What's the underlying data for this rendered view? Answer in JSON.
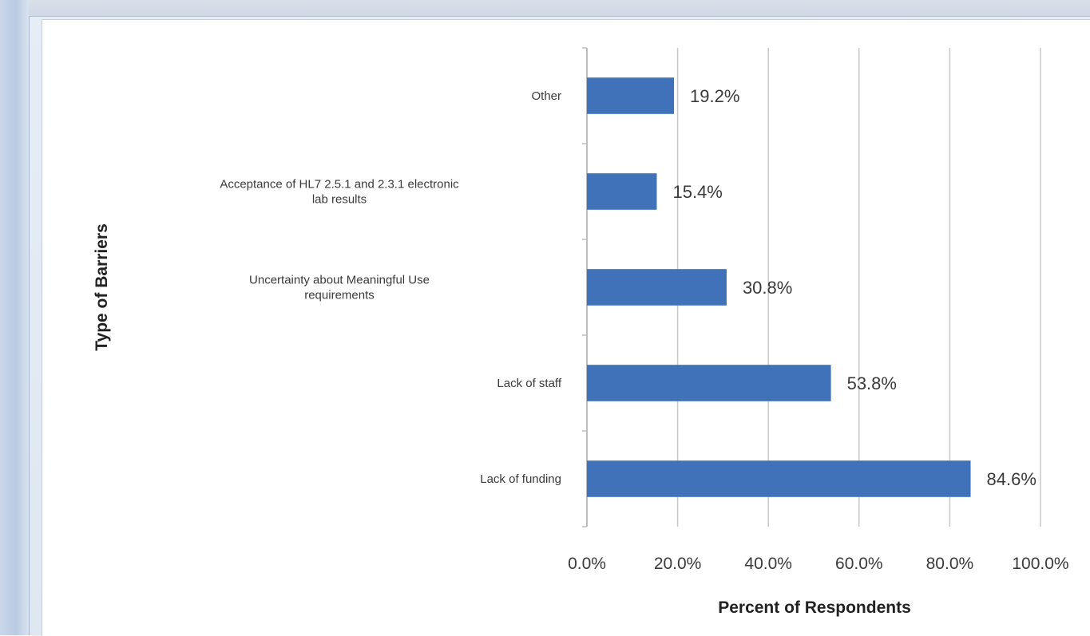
{
  "chart_data": {
    "type": "bar",
    "orientation": "horizontal",
    "title": "",
    "xlabel": "Percent of Respondents",
    "ylabel": "Type of Barriers",
    "categories": [
      "Other",
      "Acceptance of HL7 2.5.1 and 2.3.1 electronic lab results",
      "Uncertainty about Meaningful Use requirements",
      "Lack of staff",
      "Lack of funding"
    ],
    "category_lines": [
      [
        "Other"
      ],
      [
        "Acceptance of HL7 2.5.1 and 2.3.1 electronic",
        "lab results"
      ],
      [
        "Uncertainty about Meaningful Use",
        "requirements"
      ],
      [
        "Lack of staff"
      ],
      [
        "Lack of funding"
      ]
    ],
    "values": [
      19.2,
      15.4,
      30.8,
      53.8,
      84.6
    ],
    "data_labels": [
      "19.2%",
      "15.4%",
      "30.8%",
      "53.8%",
      "84.6%"
    ],
    "xlim": [
      0,
      100
    ],
    "x_ticks": [
      0,
      20,
      40,
      60,
      80,
      100
    ],
    "x_tick_labels": [
      "0.0%",
      "20.0%",
      "40.0%",
      "60.0%",
      "80.0%",
      "100.0%"
    ],
    "grid": "vertical",
    "legend": "none",
    "colors": {
      "bar": "#3f72b8",
      "grid": "#c8c8c8",
      "axis": "#bdbdbd"
    }
  }
}
